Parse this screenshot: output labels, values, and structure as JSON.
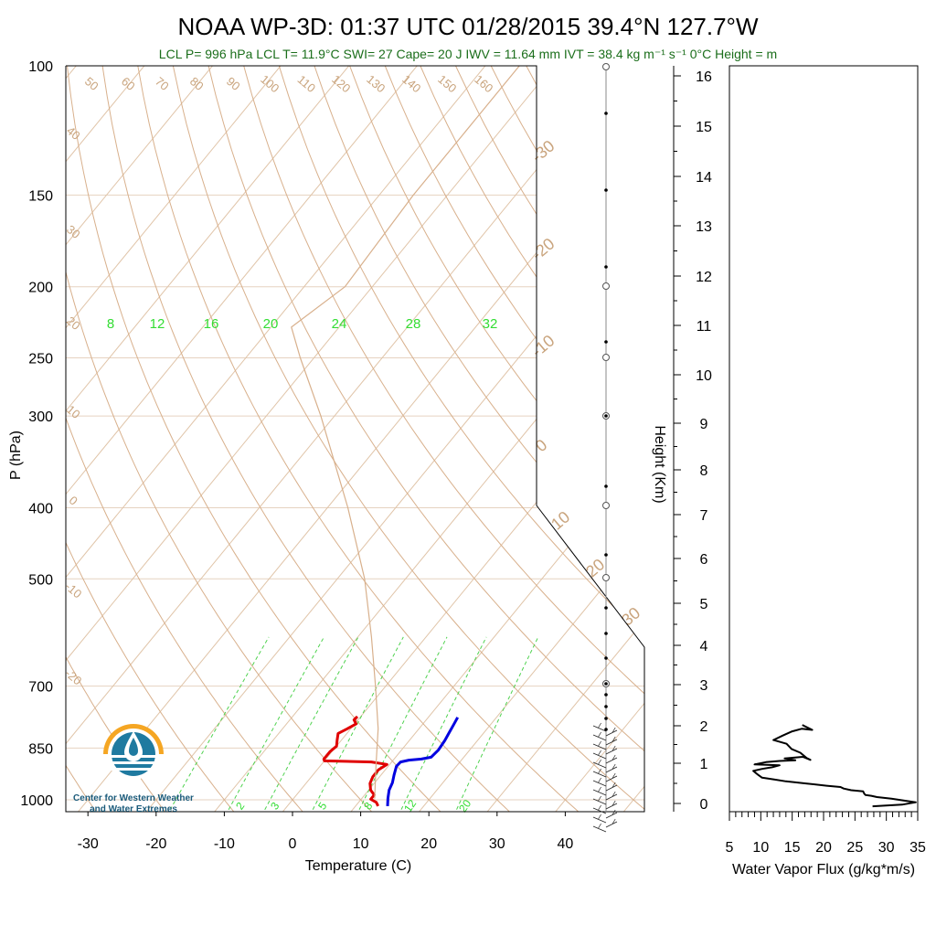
{
  "title": "NOAA WP-3D: 01:37 UTC 01/28/2015  39.4°N 127.7°W",
  "subtitle": "LCL P= 996 hPa  LCL T= 11.9°C  SWI= 27  Cape= 20 J  IWV = 11.64 mm  IVT = 38.4 kg m⁻¹ s⁻¹  0°C Height =  m",
  "logo": {
    "line1": "Center for Western Weather",
    "line2": "and Water Extremes",
    "icon": "water-drop-logo-icon"
  },
  "colors": {
    "temperature": "#e00000",
    "dewpoint": "#0000e0",
    "flux": "#000000",
    "dry_adiabat": "#d8b08c",
    "moist_adiabat": "#9ee89e",
    "mixing_ratio": "#4fd24f",
    "subtitle": "#1b6e1b"
  },
  "chart_data": [
    {
      "type": "line",
      "subtype": "skew-t",
      "xlabel": "Temperature (C)",
      "ylabel": "P (hPa)",
      "right_label": "Height (Km)",
      "pressure_ticks": [
        100,
        150,
        200,
        250,
        300,
        400,
        500,
        700,
        850,
        1000
      ],
      "pressure_tick_labels": [
        "100",
        "150",
        "200",
        "250",
        "300",
        "400",
        "500",
        "700",
        "850",
        "1000"
      ],
      "temperature_ticks": [
        -30,
        -20,
        -10,
        0,
        10,
        20,
        30,
        40
      ],
      "temperature_tick_labels": [
        "-30",
        "-20",
        "-10",
        "0",
        "10",
        "20",
        "30",
        "40"
      ],
      "xlim": [
        -34,
        52
      ],
      "ylim": [
        1050,
        100
      ],
      "height_ticks": [
        0,
        1,
        2,
        3,
        4,
        5,
        6,
        7,
        8,
        9,
        10,
        11,
        12,
        13,
        14,
        15,
        16
      ],
      "height_tick_labels": [
        "0",
        "1",
        "2",
        "3",
        "4",
        "5",
        "6",
        "7",
        "8",
        "9",
        "10",
        "11",
        "12",
        "13",
        "14",
        "15",
        "16"
      ],
      "dry_adiabat_labels": [
        "50",
        "60",
        "70",
        "80",
        "90",
        "100",
        "110",
        "120",
        "130",
        "140",
        "150",
        "160"
      ],
      "left_edge_labels": [
        "40",
        "30",
        "20",
        "10",
        "0",
        "-10",
        "-20"
      ],
      "right_edge_labels": [
        "-30",
        "-20",
        "-10",
        "0",
        "10",
        "20",
        "30"
      ],
      "moist_adiabat_labels": [
        "8",
        "12",
        "16",
        "20",
        "24",
        "28",
        "32"
      ],
      "mixing_ratio_labels": [
        "2",
        "3",
        "5",
        "8",
        "12",
        "20"
      ],
      "series": [
        {
          "kind": "temperature",
          "points": [
            {
              "p": 1020,
              "t": 13.3
            },
            {
              "p": 1008,
              "t": 12.6
            },
            {
              "p": 998,
              "t": 11.4
            },
            {
              "p": 985,
              "t": 11.4
            },
            {
              "p": 970,
              "t": 10.3
            },
            {
              "p": 950,
              "t": 9.4
            },
            {
              "p": 930,
              "t": 9.0
            },
            {
              "p": 910,
              "t": 9.0
            },
            {
              "p": 895,
              "t": 9.6
            },
            {
              "p": 888,
              "t": 7.0
            },
            {
              "p": 885,
              "t": 0.0
            },
            {
              "p": 880,
              "t": -0.3
            },
            {
              "p": 860,
              "t": -0.3
            },
            {
              "p": 845,
              "t": 0.0
            },
            {
              "p": 830,
              "t": -0.6
            },
            {
              "p": 812,
              "t": -1.3
            },
            {
              "p": 800,
              "t": -0.5
            },
            {
              "p": 788,
              "t": 0.2
            },
            {
              "p": 778,
              "t": -0.6
            },
            {
              "p": 770,
              "t": -0.5
            }
          ]
        },
        {
          "kind": "dewpoint",
          "points": [
            {
              "p": 1020,
              "t": 14.7
            },
            {
              "p": 995,
              "t": 13.8
            },
            {
              "p": 970,
              "t": 13.0
            },
            {
              "p": 948,
              "t": 12.6
            },
            {
              "p": 925,
              "t": 11.9
            },
            {
              "p": 900,
              "t": 11.2
            },
            {
              "p": 888,
              "t": 11.3
            },
            {
              "p": 883,
              "t": 12.3
            },
            {
              "p": 880,
              "t": 14.0
            },
            {
              "p": 875,
              "t": 15.2
            },
            {
              "p": 855,
              "t": 15.4
            },
            {
              "p": 830,
              "t": 15.2
            },
            {
              "p": 810,
              "t": 14.9
            },
            {
              "p": 790,
              "t": 14.6
            },
            {
              "p": 772,
              "t": 14.3
            }
          ]
        },
        {
          "kind": "parcel",
          "points": [
            {
              "p": 996,
              "t": 11.9
            },
            {
              "p": 900,
              "t": 8.2
            },
            {
              "p": 800,
              "t": 4.0
            },
            {
              "p": 700,
              "t": -1.5
            },
            {
              "p": 600,
              "t": -8.0
            },
            {
              "p": 500,
              "t": -16.0
            },
            {
              "p": 400,
              "t": -27.0
            },
            {
              "p": 300,
              "t": -42.0
            },
            {
              "p": 250,
              "t": -52.0
            },
            {
              "p": 227,
              "t": -57.0
            },
            {
              "p": 200,
              "t": -54.0
            },
            {
              "p": 150,
              "t": -55.0
            },
            {
              "p": 100,
              "t": -55.0
            }
          ]
        }
      ]
    },
    {
      "type": "line",
      "xlabel": "Water Vapor Flux (g/kg*m/s)",
      "ylabel": "Height (Km)",
      "x_ticks": [
        5,
        10,
        15,
        20,
        25,
        30,
        35
      ],
      "x_tick_labels": [
        "5",
        "10",
        "15",
        "20",
        "25",
        "30",
        "35"
      ],
      "xlim": [
        5,
        35
      ],
      "ylim": [
        -0.2,
        16.4
      ],
      "series": [
        {
          "kind": "flux",
          "points": [
            {
              "x": 27.8,
              "y": -0.07
            },
            {
              "x": 32.5,
              "y": -0.03
            },
            {
              "x": 34.7,
              "y": 0.03
            },
            {
              "x": 30.8,
              "y": 0.12
            },
            {
              "x": 28.5,
              "y": 0.16
            },
            {
              "x": 27.6,
              "y": 0.19
            },
            {
              "x": 26.7,
              "y": 0.21
            },
            {
              "x": 26.5,
              "y": 0.24
            },
            {
              "x": 26.3,
              "y": 0.3
            },
            {
              "x": 24.4,
              "y": 0.33
            },
            {
              "x": 23.2,
              "y": 0.37
            },
            {
              "x": 22.7,
              "y": 0.41
            },
            {
              "x": 20.5,
              "y": 0.44
            },
            {
              "x": 17.0,
              "y": 0.5
            },
            {
              "x": 14.0,
              "y": 0.55
            },
            {
              "x": 12.0,
              "y": 0.6
            },
            {
              "x": 10.2,
              "y": 0.64
            },
            {
              "x": 9.5,
              "y": 0.72
            },
            {
              "x": 8.8,
              "y": 0.81
            },
            {
              "x": 10.2,
              "y": 0.86
            },
            {
              "x": 11.8,
              "y": 0.9
            },
            {
              "x": 13.0,
              "y": 0.95
            },
            {
              "x": 9.0,
              "y": 0.97
            },
            {
              "x": 10.8,
              "y": 1.03
            },
            {
              "x": 13.0,
              "y": 1.06
            },
            {
              "x": 15.5,
              "y": 1.08
            },
            {
              "x": 13.8,
              "y": 1.13
            },
            {
              "x": 16.7,
              "y": 1.17
            },
            {
              "x": 17.9,
              "y": 1.09
            },
            {
              "x": 17.3,
              "y": 1.14
            },
            {
              "x": 16.3,
              "y": 1.28
            },
            {
              "x": 14.9,
              "y": 1.38
            },
            {
              "x": 14.1,
              "y": 1.52
            },
            {
              "x": 12.0,
              "y": 1.62
            },
            {
              "x": 13.5,
              "y": 1.74
            },
            {
              "x": 15.0,
              "y": 1.85
            },
            {
              "x": 16.5,
              "y": 1.92
            },
            {
              "x": 18.2,
              "y": 1.89
            },
            {
              "x": 16.6,
              "y": 2.02
            }
          ]
        }
      ]
    }
  ]
}
